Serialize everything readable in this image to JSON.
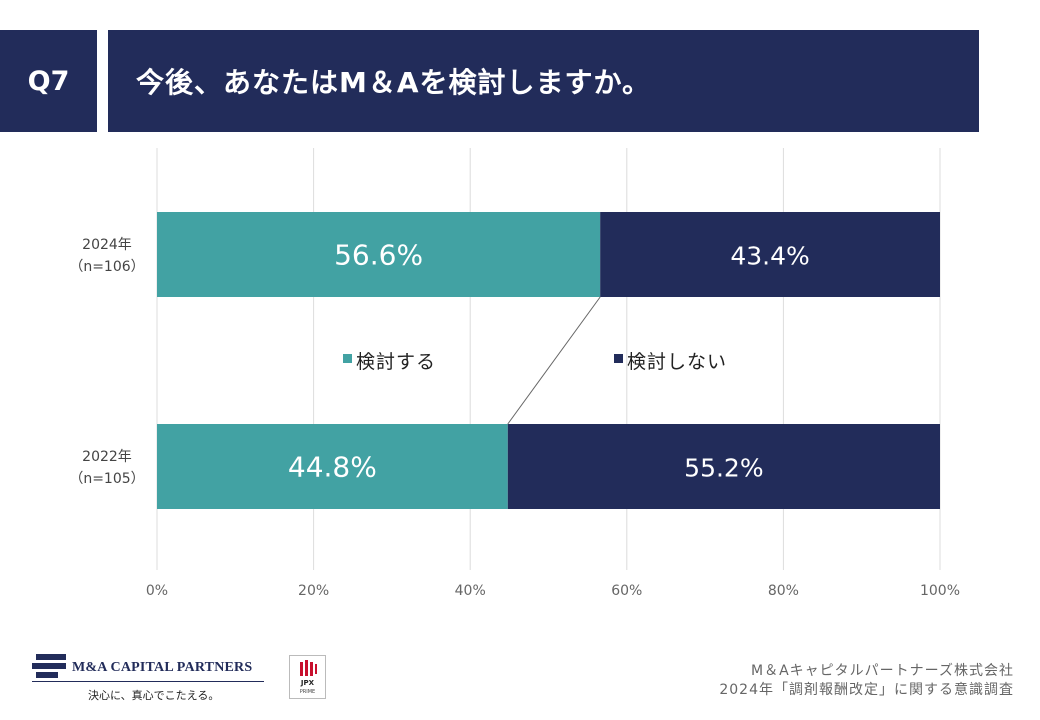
{
  "header": {
    "question_no": "Q7",
    "title": "今後、あなたはM＆Aを検討しますか。"
  },
  "chart_data": {
    "type": "bar",
    "orientation": "horizontal",
    "stacked": true,
    "categories": [
      {
        "label_line1": "2024年",
        "label_line2": "（n=106）"
      },
      {
        "label_line1": "2022年",
        "label_line2": "（n=105）"
      }
    ],
    "series": [
      {
        "name": "検討する",
        "color": "#42a2a3",
        "values": [
          56.6,
          44.8
        ],
        "data_labels": [
          "56.6%",
          "44.8%"
        ]
      },
      {
        "name": "検討しない",
        "color": "#222c5a",
        "values": [
          43.4,
          55.2
        ],
        "data_labels": [
          "43.4%",
          "55.2%"
        ]
      }
    ],
    "xlim": [
      0,
      100
    ],
    "x_ticks": [
      0,
      20,
      40,
      60,
      80,
      100
    ],
    "x_tick_labels": [
      "0%",
      "20%",
      "40%",
      "60%",
      "80%",
      "100%"
    ],
    "grid": true,
    "legend_position": "center, between bars",
    "connector_line": "between the end of 検討する in 2024 and 2022"
  },
  "footer": {
    "company_line1": "M＆Aキャピタルパートナーズ株式会社",
    "company_line2": "2024年「調剤報酬改定」に関する意識調査",
    "logo_name": "M&A CAPITAL PARTNERS",
    "logo_tagline": "決心に、真心でこたえる。",
    "jpx_label": "JPX",
    "jpx_sub": "PRIME"
  }
}
